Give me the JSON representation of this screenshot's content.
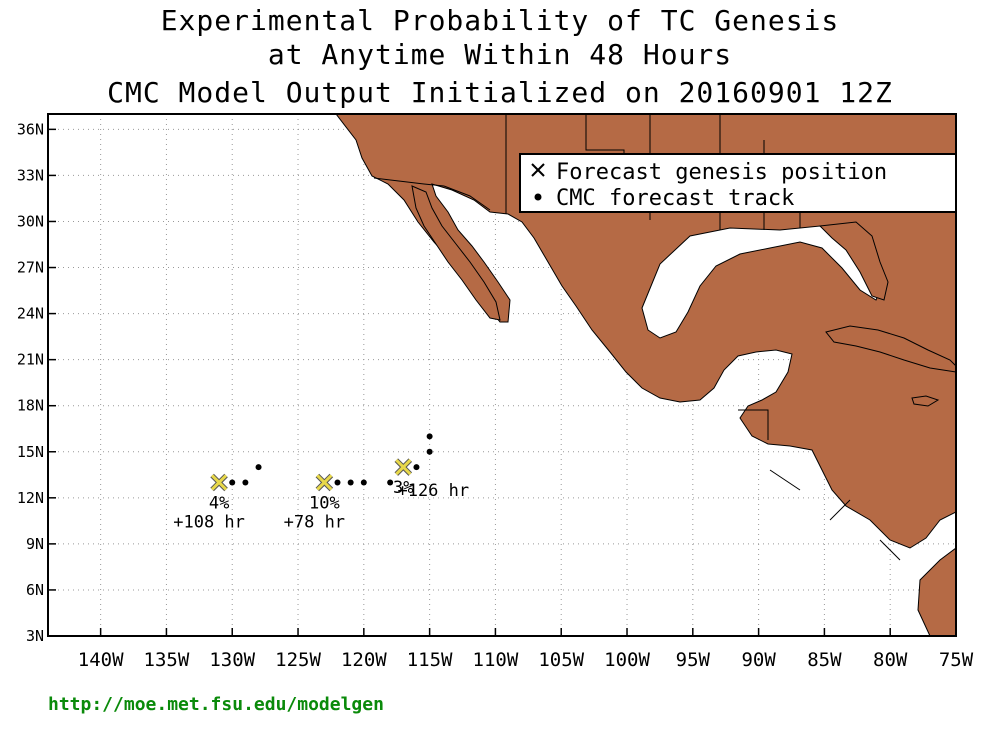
{
  "title": {
    "line1": "Experimental Probability of TC Genesis",
    "line2": "at Anytime Within 48 Hours",
    "line3": "CMC Model Output Initialized on 20160901 12Z"
  },
  "legend": {
    "genesis_label": "Forecast genesis position",
    "track_label": "CMC forecast track"
  },
  "axes": {
    "lon_ticks": [
      "140W",
      "135W",
      "130W",
      "125W",
      "120W",
      "115W",
      "110W",
      "105W",
      "100W",
      "95W",
      "90W",
      "85W",
      "80W",
      "75W"
    ],
    "lat_ticks": [
      "3N",
      "6N",
      "9N",
      "12N",
      "15N",
      "18N",
      "21N",
      "24N",
      "27N",
      "30N",
      "33N",
      "36N"
    ]
  },
  "colors": {
    "land": "#b56a45",
    "marker": "#e8d84a",
    "url": "#0a8a0a"
  },
  "systems": [
    {
      "genesis_lon": -131,
      "genesis_lat": 13,
      "prob": "4%",
      "time": "+108 hr",
      "track": [
        [
          -130,
          13
        ],
        [
          -129,
          13
        ],
        [
          -128,
          14
        ]
      ]
    },
    {
      "genesis_lon": -123,
      "genesis_lat": 13,
      "prob": "10%",
      "time": "+78 hr",
      "track": [
        [
          -122,
          13
        ],
        [
          -121,
          13
        ],
        [
          -120,
          13
        ]
      ]
    },
    {
      "genesis_lon": -117,
      "genesis_lat": 14,
      "prob": "3%",
      "time": "+126 hr",
      "track": [
        [
          -118,
          13
        ],
        [
          -116,
          14
        ],
        [
          -115,
          15
        ],
        [
          -115,
          16
        ]
      ]
    }
  ],
  "footer": {
    "url": "http://moe.met.fsu.edu/modelgen"
  }
}
